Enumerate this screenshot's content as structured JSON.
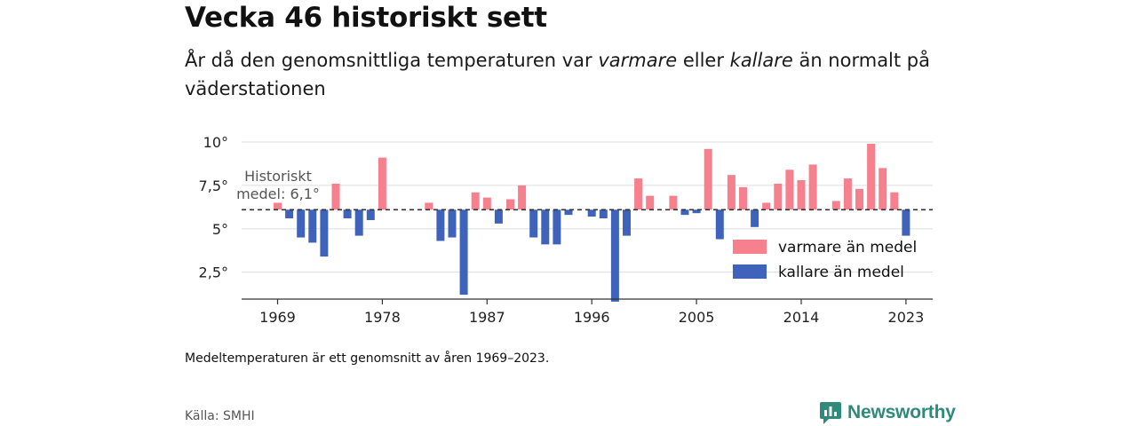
{
  "title": "Vecka 46 historiskt sett",
  "subtitle": {
    "part1": "År då den genomsnittliga temperaturen var ",
    "warm_word": "varmare",
    "part2": " eller ",
    "cold_word": "kallare",
    "part3": " än normalt på väderstationen"
  },
  "note": "Medeltemperaturen är ett genomsnitt av åren 1969–2023.",
  "source": "Källa: SMHI",
  "logo_text": "Newsworthy",
  "colors": {
    "warm": "#f6808d",
    "cold": "#3f63bb",
    "logo": "#2e8b7a"
  },
  "chart_data": {
    "type": "bar",
    "years": [
      1969,
      1970,
      1971,
      1972,
      1973,
      1974,
      1975,
      1976,
      1977,
      1978,
      1979,
      1980,
      1981,
      1982,
      1983,
      1984,
      1985,
      1986,
      1987,
      1988,
      1989,
      1990,
      1991,
      1992,
      1993,
      1994,
      1995,
      1996,
      1997,
      1998,
      1999,
      2000,
      2001,
      2002,
      2003,
      2004,
      2005,
      2006,
      2007,
      2008,
      2009,
      2010,
      2011,
      2012,
      2013,
      2014,
      2015,
      2016,
      2017,
      2018,
      2019,
      2020,
      2021,
      2022,
      2023
    ],
    "values": [
      6.5,
      5.6,
      4.5,
      4.2,
      3.4,
      7.6,
      5.6,
      4.6,
      5.5,
      9.1,
      null,
      null,
      null,
      6.5,
      4.3,
      4.5,
      1.2,
      7.1,
      6.8,
      5.3,
      6.7,
      7.5,
      4.5,
      4.1,
      4.1,
      5.8,
      null,
      5.7,
      5.6,
      0.8,
      4.6,
      7.9,
      6.9,
      null,
      6.9,
      5.8,
      5.9,
      9.6,
      4.4,
      8.1,
      7.4,
      5.1,
      6.5,
      7.6,
      8.4,
      7.8,
      8.7,
      null,
      6.6,
      7.9,
      7.3,
      9.9,
      8.5,
      7.1,
      4.6
    ],
    "baseline": 6.1,
    "baseline_label_line1": "Historiskt",
    "baseline_label_line2": "medel: 6,1°",
    "y_ticks": [
      {
        "value": 2.5,
        "label": "2,5°"
      },
      {
        "value": 5,
        "label": "5°"
      },
      {
        "value": 7.5,
        "label": "7,5°"
      },
      {
        "value": 10,
        "label": "10°"
      }
    ],
    "x_ticks": [
      1969,
      1978,
      1987,
      1996,
      2005,
      2014,
      2023
    ],
    "ylim": [
      1.0,
      10.0
    ],
    "legend": [
      {
        "label": "varmare än medel",
        "color": "#f6808d"
      },
      {
        "label": "kallare än medel",
        "color": "#3f63bb"
      }
    ],
    "legend_position": "right, lower middle",
    "grid": true
  }
}
